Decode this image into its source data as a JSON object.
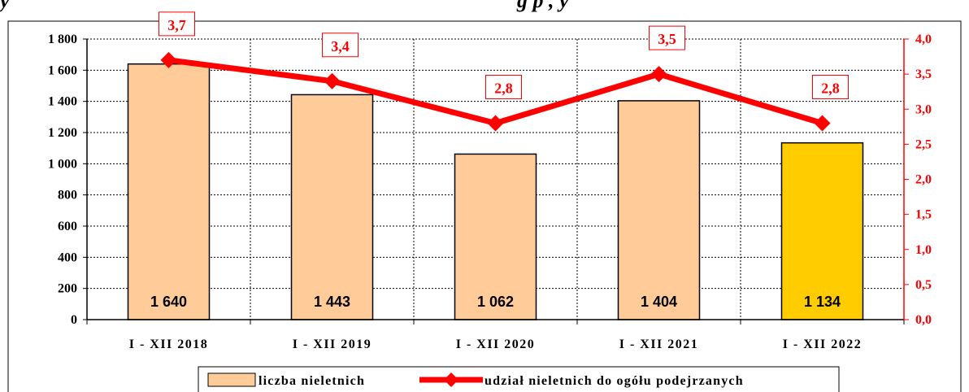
{
  "header": {
    "fragment_left": "y",
    "fragment_right": "g    p      ,        y"
  },
  "chart_data": {
    "type": "bar",
    "categories": [
      "I - XII 2018",
      "I - XII 2019",
      "I - XII 2020",
      "I - XII 2021",
      "I - XII 2022"
    ],
    "series": [
      {
        "name": "liczba nieletnich",
        "type": "bar",
        "axis": "left",
        "values": [
          1640,
          1443,
          1062,
          1404,
          1134
        ],
        "value_labels": [
          "1 640",
          "1 443",
          "1 062",
          "1 404",
          "1 134"
        ],
        "colors": [
          "#FFCC99",
          "#FFCC99",
          "#FFCC99",
          "#FFCC99",
          "#FFCC00"
        ]
      },
      {
        "name": "udział nieletnich do ogółu podejrzanych",
        "type": "line",
        "axis": "right",
        "values": [
          3.7,
          3.4,
          2.8,
          3.5,
          2.8
        ],
        "value_labels": [
          "3,7",
          "3,4",
          "2,8",
          "3,5",
          "2,8"
        ],
        "color": "#FF0000"
      }
    ],
    "y_left": {
      "lim": [
        0,
        1800
      ],
      "ticks": [
        0,
        200,
        400,
        600,
        800,
        1000,
        1200,
        1400,
        1600,
        1800
      ],
      "tick_labels": [
        "0",
        "200",
        "400",
        "600",
        "800",
        "1 000",
        "1 200",
        "1 400",
        "1 600",
        "1 800"
      ]
    },
    "y_right": {
      "lim": [
        0,
        4
      ],
      "ticks": [
        0,
        0.5,
        1,
        1.5,
        2,
        2.5,
        3,
        3.5,
        4
      ],
      "tick_labels": [
        "0,0",
        "0,5",
        "1,0",
        "1,5",
        "2,0",
        "2,5",
        "3,0",
        "3,5",
        "4,0"
      ],
      "color": "#FF0000"
    },
    "grid": true,
    "legend": {
      "position": "bottom",
      "items": [
        "liczba nieletnich",
        "udział nieletnich do ogółu podejrzanych"
      ]
    }
  }
}
